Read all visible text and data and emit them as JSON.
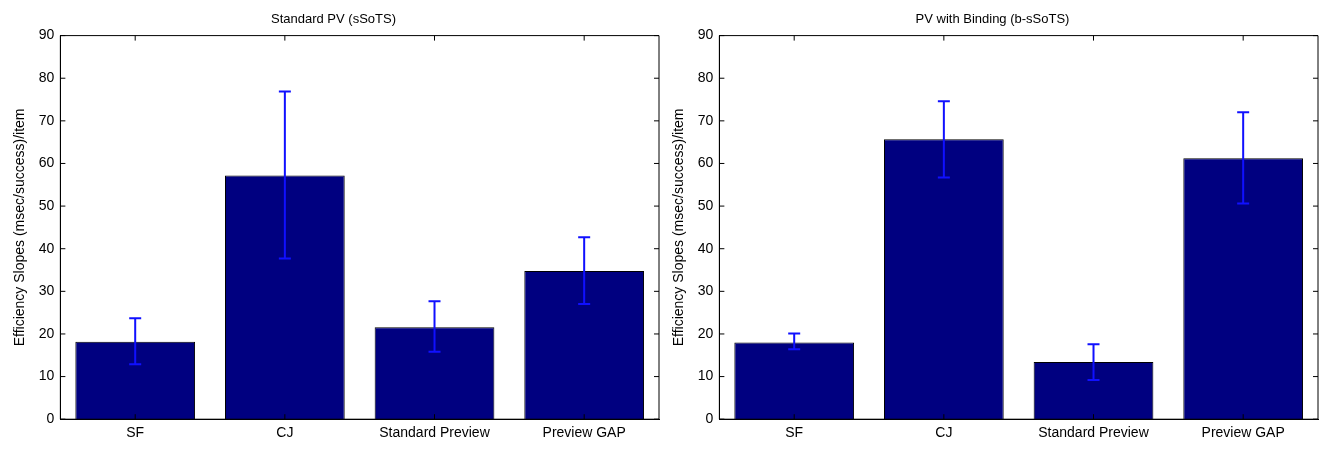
{
  "chart_data": [
    {
      "type": "bar",
      "title": "Standard PV (sSoTS)",
      "ylabel": "Efficiency Slopes (msec/success)/item",
      "categories": [
        "SF",
        "CJ",
        "Standard Preview",
        "Preview GAP"
      ],
      "values": [
        18.2,
        57.2,
        21.6,
        34.8
      ],
      "errors": [
        [
          12.9,
          23.7
        ],
        [
          37.7,
          76.9
        ],
        [
          15.8,
          27.7
        ],
        [
          27.0,
          42.7
        ]
      ],
      "color": "#000080",
      "ylim": [
        0,
        90
      ],
      "yticks": [
        0,
        10,
        20,
        30,
        40,
        50,
        60,
        70,
        80,
        90
      ],
      "grid": false,
      "legend": false
    },
    {
      "type": "bar",
      "title": "PV with Binding (b-sSoTS)",
      "ylabel": "Efficiency Slopes (msec/success)/item",
      "categories": [
        "SF",
        "CJ",
        "Standard Preview",
        "Preview GAP"
      ],
      "values": [
        18.0,
        65.7,
        13.4,
        61.2
      ],
      "errors": [
        [
          16.4,
          20.1
        ],
        [
          56.7,
          74.6
        ],
        [
          9.2,
          17.6
        ],
        [
          50.6,
          72.0
        ]
      ],
      "color": "#000080",
      "ylim": [
        0,
        90
      ],
      "yticks": [
        0,
        10,
        20,
        30,
        40,
        50,
        60,
        70,
        80,
        90
      ],
      "grid": false,
      "legend": false
    }
  ]
}
